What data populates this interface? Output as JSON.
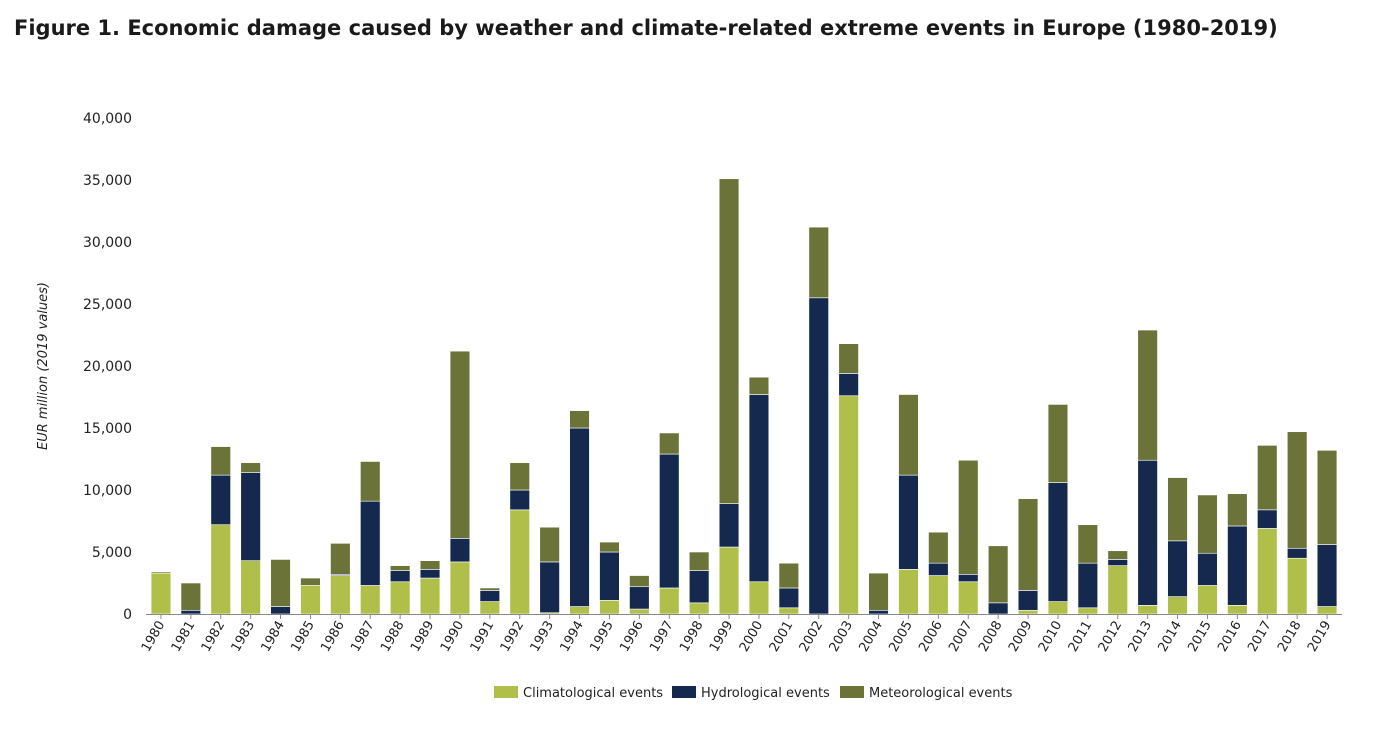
{
  "title": "Figure 1. Economic damage caused by weather and climate-related extreme events in Europe (1980-2019)",
  "chart_data": {
    "type": "bar",
    "stacked": true,
    "ylabel": "EUR million (2019 values)",
    "xlabel": "",
    "ylim": [
      0,
      40000
    ],
    "yticks": [
      0,
      5000,
      10000,
      15000,
      20000,
      25000,
      30000,
      35000,
      40000
    ],
    "ytick_labels": [
      "0",
      "5,000",
      "10,000",
      "15,000",
      "20,000",
      "25,000",
      "30,000",
      "35,000",
      "40,000"
    ],
    "grid": false,
    "legend_position": "bottom-center",
    "categories": [
      "1980",
      "1981",
      "1982",
      "1983",
      "1984",
      "1985",
      "1986",
      "1987",
      "1988",
      "1989",
      "1990",
      "1991",
      "1992",
      "1993",
      "1994",
      "1995",
      "1996",
      "1997",
      "1998",
      "1999",
      "2000",
      "2001",
      "2002",
      "2003",
      "2004",
      "2005",
      "2006",
      "2007",
      "2008",
      "2009",
      "2010",
      "2011",
      "2012",
      "2013",
      "2014",
      "2015",
      "2016",
      "2017",
      "2018",
      "2019"
    ],
    "series": [
      {
        "name": "Climatological events",
        "color": "#b0bf4a",
        "values": [
          3300,
          0,
          7200,
          4300,
          0,
          2300,
          3100,
          2300,
          2600,
          2900,
          4200,
          1000,
          8400,
          100,
          600,
          1100,
          400,
          2100,
          900,
          5400,
          2600,
          500,
          0,
          17600,
          0,
          3600,
          3100,
          2600,
          0,
          300,
          1000,
          500,
          3900,
          700,
          1400,
          2300,
          700,
          6900,
          4500,
          600
        ]
      },
      {
        "name": "Hydrological events",
        "color": "#14294d",
        "values": [
          0,
          300,
          4000,
          7100,
          600,
          0,
          100,
          6800,
          900,
          700,
          1900,
          900,
          1600,
          4100,
          14400,
          3900,
          1800,
          10800,
          2600,
          3500,
          15100,
          1600,
          25500,
          1800,
          300,
          7600,
          1000,
          600,
          900,
          1600,
          9600,
          3600,
          500,
          11700,
          4500,
          2600,
          6400,
          1500,
          800,
          5000
        ]
      },
      {
        "name": "Meteorological events",
        "color": "#6b7338",
        "values": [
          100,
          2200,
          2300,
          800,
          3800,
          600,
          2500,
          3200,
          400,
          700,
          15100,
          200,
          2200,
          2800,
          1400,
          800,
          900,
          1700,
          1500,
          26200,
          1400,
          2000,
          5700,
          2400,
          3000,
          6500,
          2500,
          9200,
          4600,
          7400,
          6300,
          3100,
          700,
          10500,
          5100,
          4700,
          2600,
          5200,
          9400,
          7600
        ]
      }
    ]
  }
}
